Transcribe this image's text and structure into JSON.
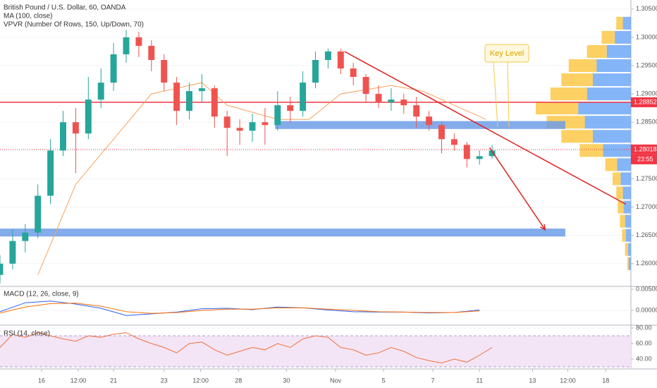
{
  "chart_data": [
    {
      "type": "candlestick",
      "title": "British Pound / U.S. Dollar, 60, OANDA",
      "subtitles": [
        "MA (100, close)",
        "VPVR (Number Of Rows, 150, Up/Down, 70)"
      ],
      "x": [
        0,
        1,
        2,
        3,
        4,
        5,
        6,
        7,
        8,
        9,
        10,
        11,
        12,
        13,
        14,
        15,
        16,
        17,
        18,
        19,
        20,
        21,
        22,
        23,
        24,
        25,
        26,
        27,
        28,
        29,
        30,
        31,
        32,
        33,
        34,
        35,
        36,
        37,
        38,
        39
      ],
      "open": [
        1.258,
        1.26,
        1.264,
        1.2655,
        1.272,
        1.28,
        1.285,
        1.283,
        1.289,
        1.292,
        1.297,
        1.3,
        1.2985,
        1.296,
        1.292,
        1.287,
        1.2905,
        1.291,
        1.286,
        1.284,
        1.2835,
        1.285,
        1.2845,
        1.288,
        1.287,
        1.292,
        1.296,
        1.2975,
        1.2945,
        1.293,
        1.29,
        1.2885,
        1.289,
        1.288,
        1.286,
        1.2845,
        1.282,
        1.281,
        1.2785,
        1.279
      ],
      "high": [
        1.2615,
        1.266,
        1.267,
        1.274,
        1.282,
        1.287,
        1.2875,
        1.293,
        1.2945,
        1.299,
        1.3013,
        1.301,
        1.2995,
        1.297,
        1.293,
        1.292,
        1.2935,
        1.2915,
        1.287,
        1.2855,
        1.2865,
        1.2875,
        1.2905,
        1.2895,
        1.294,
        1.2975,
        1.298,
        1.298,
        1.2955,
        1.2935,
        1.2915,
        1.291,
        1.29,
        1.2895,
        1.287,
        1.285,
        1.283,
        1.2815,
        1.28,
        1.281
      ],
      "low": [
        1.2565,
        1.259,
        1.262,
        1.2645,
        1.2705,
        1.279,
        1.276,
        1.282,
        1.2875,
        1.2905,
        1.2955,
        1.2965,
        1.294,
        1.2905,
        1.2845,
        1.2855,
        1.2885,
        1.284,
        1.279,
        1.281,
        1.2815,
        1.281,
        1.2835,
        1.285,
        1.286,
        1.291,
        1.2945,
        1.2935,
        1.2915,
        1.2885,
        1.2875,
        1.287,
        1.2865,
        1.284,
        1.2835,
        1.2795,
        1.28,
        1.277,
        1.2775,
        1.2785
      ],
      "close": [
        1.26,
        1.264,
        1.2655,
        1.272,
        1.28,
        1.285,
        1.283,
        1.289,
        1.292,
        1.297,
        1.3,
        1.2985,
        1.296,
        1.292,
        1.287,
        1.2905,
        1.291,
        1.286,
        1.284,
        1.2835,
        1.285,
        1.2845,
        1.288,
        1.287,
        1.292,
        1.296,
        1.2975,
        1.2945,
        1.293,
        1.29,
        1.2885,
        1.289,
        1.288,
        1.286,
        1.2845,
        1.282,
        1.281,
        1.2785,
        1.279,
        1.28
      ],
      "up_color": "#26a69a",
      "down_color": "#ef5350",
      "xlim": [
        0,
        50
      ],
      "ylim": [
        1.2561,
        1.3066
      ],
      "yticks": [
        {
          "value": 1.26,
          "label": "1.26000"
        },
        {
          "value": 1.265,
          "label": "1.26500"
        },
        {
          "value": 1.27,
          "label": "1.27000"
        },
        {
          "value": 1.275,
          "label": "1.27500"
        },
        {
          "value": 1.28,
          "label": "1.28000"
        },
        {
          "value": 1.285,
          "label": "1.28500"
        },
        {
          "value": 1.29,
          "label": "1.29000"
        },
        {
          "value": 1.295,
          "label": "1.29500"
        },
        {
          "value": 1.3,
          "label": "1.30000"
        },
        {
          "value": 1.305,
          "label": "1.30500"
        }
      ],
      "ma": {
        "color": "#f7a35c",
        "x": [
          3,
          6,
          9,
          12,
          16,
          18,
          22,
          24.5,
          27,
          31,
          33.5,
          36,
          38.5
        ],
        "values": [
          1.258,
          1.274,
          1.282,
          1.29,
          1.292,
          1.288,
          1.2855,
          1.2855,
          1.29,
          1.2915,
          1.2905,
          1.288,
          1.2855
        ]
      },
      "volume_profile": {
        "levels": [
          1.26,
          1.2625,
          1.265,
          1.2675,
          1.27,
          1.2725,
          1.275,
          1.2775,
          1.28,
          1.2825,
          1.285,
          1.2875,
          1.29,
          1.2925,
          1.295,
          1.2975,
          1.3,
          1.3025
        ],
        "up": [
          3,
          4,
          7,
          8,
          10,
          11,
          14,
          19,
          38,
          52,
          63,
          72,
          60,
          52,
          47,
          33,
          22,
          11
        ],
        "down": [
          2,
          4,
          5,
          7,
          8,
          9,
          11,
          16,
          32,
          43,
          52,
          58,
          50,
          43,
          38,
          27,
          18,
          9
        ],
        "up_color": "#5b9cf6",
        "down_color": "#fbc02d"
      },
      "zones": [
        {
          "from": 21.8,
          "to": 44.8,
          "low": 1.2838,
          "high": 1.2852,
          "color": "#6f9ee8"
        },
        {
          "from": 0,
          "to": 44.8,
          "low": 1.2648,
          "high": 1.2662,
          "color": "#6f9ee8"
        }
      ],
      "trendline": {
        "x": [
          27.3,
          49.6
        ],
        "y": [
          1.2975,
          1.2705
        ],
        "color": "#e02020"
      },
      "arrow": {
        "x": [
          38.8,
          43.2
        ],
        "y": [
          1.2805,
          1.266
        ],
        "color": "#e02020"
      },
      "levels": [
        {
          "value": 1.28852,
          "label": "1.28852",
          "color": "#f23645",
          "style": "solid"
        },
        {
          "value": 1.28018,
          "label": "1.28018",
          "color": "#f23645",
          "style": "dotted"
        }
      ],
      "countdown": "23:55",
      "annotation": "Key Level"
    },
    {
      "type": "line",
      "title": "MACD (12, 26, close, 9)",
      "x": [
        0,
        2,
        4,
        6,
        8,
        10,
        12,
        14,
        16,
        18,
        20,
        22,
        24,
        26,
        28,
        30,
        32,
        34,
        36,
        38
      ],
      "series": [
        {
          "color": "#2962ff",
          "values": [
            -0.0003,
            0.0018,
            0.0022,
            0.0015,
            0.0005,
            -0.0012,
            -0.0008,
            -0.0004,
            0.0004,
            0.0005,
            0.0002,
            0.0008,
            0.0006,
            0.0001,
            -0.0003,
            -0.0004,
            -0.0004,
            -0.0006,
            -0.0005,
            0.0001
          ]
        },
        {
          "color": "#ff6d00",
          "values": [
            -0.0006,
            0.0008,
            0.0016,
            0.0017,
            0.001,
            -0.0003,
            -0.0007,
            -0.0005,
            0.0,
            0.0003,
            0.0003,
            0.0006,
            0.0006,
            0.0003,
            0.0,
            -0.0003,
            -0.0004,
            -0.0005,
            -0.0005,
            -0.0001
          ]
        }
      ],
      "xlim": [
        0,
        50
      ],
      "ylim": [
        -0.00333,
        0.0055
      ],
      "yticks": [
        {
          "value": 0.005,
          "label": "0.00500"
        },
        {
          "value": 0,
          "label": "0.00000"
        }
      ]
    },
    {
      "type": "line",
      "title": "RSI (14, close)",
      "x": [
        0,
        1,
        2,
        3,
        4,
        5,
        6,
        7,
        8,
        9,
        10,
        11,
        12,
        13,
        14,
        15,
        16,
        17,
        18,
        19,
        20,
        21,
        22,
        23,
        24,
        25,
        26,
        27,
        28,
        29,
        30,
        31,
        32,
        33,
        34,
        35,
        36,
        37,
        38,
        39
      ],
      "series": [
        {
          "color": "#f2703c",
          "values": [
            55,
            72,
            68,
            74,
            70,
            66,
            63,
            70,
            68,
            72,
            74,
            66,
            60,
            55,
            48,
            60,
            62,
            52,
            45,
            50,
            55,
            52,
            60,
            55,
            66,
            70,
            68,
            55,
            52,
            45,
            48,
            55,
            50,
            42,
            38,
            35,
            40,
            36,
            45,
            55
          ]
        }
      ],
      "band": [
        30,
        70
      ],
      "band_color": "#f3e5f5",
      "xlim": [
        0,
        50
      ],
      "ylim": [
        28.2,
        82.7
      ],
      "yticks": [
        {
          "value": 80,
          "label": "80.00"
        },
        {
          "value": 60,
          "label": "60.00"
        },
        {
          "value": 40,
          "label": "40.00"
        }
      ],
      "xticks": [
        {
          "value": 3.3,
          "label": "16"
        },
        {
          "value": 6.2,
          "label": "12:00"
        },
        {
          "value": 9,
          "label": "21"
        },
        {
          "value": 13,
          "label": "23"
        },
        {
          "value": 15.9,
          "label": "12:00"
        },
        {
          "value": 18.9,
          "label": "28"
        },
        {
          "value": 22.7,
          "label": "30"
        },
        {
          "value": 26.6,
          "label": "Nov"
        },
        {
          "value": 30.4,
          "label": "5"
        },
        {
          "value": 34.3,
          "label": "7"
        },
        {
          "value": 38,
          "label": "11"
        },
        {
          "value": 42.2,
          "label": "13"
        },
        {
          "value": 45,
          "label": "12:00"
        },
        {
          "value": 48,
          "label": "18"
        }
      ]
    }
  ]
}
